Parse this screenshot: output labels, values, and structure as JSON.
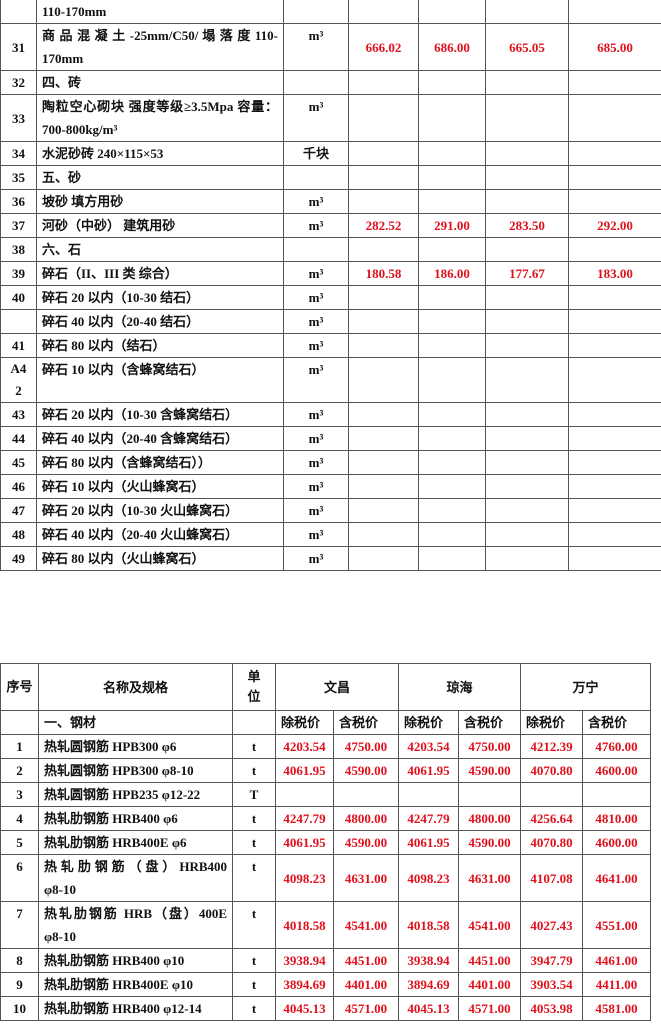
{
  "table1": {
    "rows": [
      {
        "no": "",
        "name": "110-170mm",
        "unit": "",
        "vals": [
          "",
          "",
          "",
          ""
        ]
      },
      {
        "no": "31",
        "name": "商 品 混 凝 土 -25mm/C50/ 塌 落 度 110-170mm",
        "unit": "m³",
        "vals": [
          "666.02",
          "686.00",
          "665.05",
          "685.00"
        ]
      },
      {
        "no": "32",
        "name": "四、砖",
        "unit": "",
        "vals": [
          "",
          "",
          "",
          ""
        ]
      },
      {
        "no": "33",
        "name": "陶粒空心砌块 强度等级≥3.5Mpa 容量：700-800kg/m³",
        "unit": "m³",
        "vals": [
          "",
          "",
          "",
          ""
        ]
      },
      {
        "no": "34",
        "name": "水泥砂砖 240×115×53",
        "unit": "千块",
        "vals": [
          "",
          "",
          "",
          ""
        ]
      },
      {
        "no": "35",
        "name": "五、砂",
        "unit": "",
        "vals": [
          "",
          "",
          "",
          ""
        ]
      },
      {
        "no": "36",
        "name": "坡砂 填方用砂",
        "unit": "m³",
        "vals": [
          "",
          "",
          "",
          ""
        ]
      },
      {
        "no": "37",
        "name": "河砂（中砂） 建筑用砂",
        "unit": "m³",
        "vals": [
          "282.52",
          "291.00",
          "283.50",
          "292.00"
        ]
      },
      {
        "no": "38",
        "name": "六、石",
        "unit": "",
        "vals": [
          "",
          "",
          "",
          ""
        ]
      },
      {
        "no": "39",
        "name": "碎石（II、III 类 综合）",
        "unit": "m³",
        "vals": [
          "180.58",
          "186.00",
          "177.67",
          "183.00"
        ]
      },
      {
        "no": "40",
        "name": "碎石 20 以内（10-30 结石）",
        "unit": "m³",
        "vals": [
          "",
          "",
          "",
          ""
        ]
      },
      {
        "no": "",
        "name": "碎石 40 以内（20-40 结石）",
        "unit": "m³",
        "vals": [
          "",
          "",
          "",
          ""
        ]
      },
      {
        "no": "41",
        "name": "碎石 80 以内（结石）",
        "unit": "m³",
        "vals": [
          "",
          "",
          "",
          ""
        ]
      },
      {
        "no": "A42",
        "name": "碎石 10 以内（含蜂窝结石）",
        "unit": "m³",
        "vals": [
          "",
          "",
          "",
          ""
        ]
      },
      {
        "no": "43",
        "name": "碎石 20 以内（10-30 含蜂窝结石）",
        "unit": "m³",
        "vals": [
          "",
          "",
          "",
          ""
        ]
      },
      {
        "no": "44",
        "name": "碎石 40 以内（20-40 含蜂窝结石）",
        "unit": "m³",
        "vals": [
          "",
          "",
          "",
          ""
        ]
      },
      {
        "no": "45",
        "name": "碎石 80 以内（含蜂窝结石））",
        "unit": "m³",
        "vals": [
          "",
          "",
          "",
          ""
        ]
      },
      {
        "no": "46",
        "name": "碎石 10 以内（火山蜂窝石）",
        "unit": "m³",
        "vals": [
          "",
          "",
          "",
          ""
        ]
      },
      {
        "no": "47",
        "name": "碎石 20 以内（10-30 火山蜂窝石）",
        "unit": "m³",
        "vals": [
          "",
          "",
          "",
          ""
        ]
      },
      {
        "no": "48",
        "name": "碎石 40 以内（20-40 火山蜂窝石）",
        "unit": "m³",
        "vals": [
          "",
          "",
          "",
          ""
        ]
      },
      {
        "no": "49",
        "name": "碎石 80 以内（火山蜂窝石）",
        "unit": "m³",
        "vals": [
          "",
          "",
          "",
          ""
        ]
      }
    ]
  },
  "table2": {
    "header": {
      "no": "序号",
      "name": "名称及规格",
      "unit": "单位",
      "regions": [
        "文昌",
        "琼海",
        "万宁"
      ],
      "sub": [
        "除税价",
        "含税价"
      ]
    },
    "section": "一、钢材",
    "rows": [
      {
        "no": "1",
        "name": "热轧圆钢筋 HPB300 φ6",
        "unit": "t",
        "vals": [
          "4203.54",
          "4750.00",
          "4203.54",
          "4750.00",
          "4212.39",
          "4760.00"
        ]
      },
      {
        "no": "2",
        "name": "热轧圆钢筋 HPB300 φ8-10",
        "unit": "t",
        "vals": [
          "4061.95",
          "4590.00",
          "4061.95",
          "4590.00",
          "4070.80",
          "4600.00"
        ]
      },
      {
        "no": "3",
        "name": "热轧圆钢筋 HPB235 φ12-22",
        "unit": "T",
        "vals": [
          "",
          "",
          "",
          "",
          "",
          ""
        ]
      },
      {
        "no": "4",
        "name": "热轧肋钢筋 HRB400 φ6",
        "unit": "t",
        "vals": [
          "4247.79",
          "4800.00",
          "4247.79",
          "4800.00",
          "4256.64",
          "4810.00"
        ]
      },
      {
        "no": "5",
        "name": "热轧肋钢筋 HRB400E φ6",
        "unit": "t",
        "vals": [
          "4061.95",
          "4590.00",
          "4061.95",
          "4590.00",
          "4070.80",
          "4600.00"
        ]
      },
      {
        "no": "6",
        "name": "热 轧 肋 钢 筋 （ 盘 ） HRB400 φ8-10",
        "unit": "t",
        "vals": [
          "4098.23",
          "4631.00",
          "4098.23",
          "4631.00",
          "4107.08",
          "4641.00"
        ]
      },
      {
        "no": "7",
        "name": "热轧肋钢筋 HRB（盘）400E φ8-10",
        "unit": "t",
        "vals": [
          "4018.58",
          "4541.00",
          "4018.58",
          "4541.00",
          "4027.43",
          "4551.00"
        ]
      },
      {
        "no": "8",
        "name": "热轧肋钢筋 HRB400 φ10",
        "unit": "t",
        "vals": [
          "3938.94",
          "4451.00",
          "3938.94",
          "4451.00",
          "3947.79",
          "4461.00"
        ]
      },
      {
        "no": "9",
        "name": "热轧肋钢筋 HRB400E φ10",
        "unit": "t",
        "vals": [
          "3894.69",
          "4401.00",
          "3894.69",
          "4401.00",
          "3903.54",
          "4411.00"
        ]
      },
      {
        "no": "10",
        "name": "热轧肋钢筋 HRB400 φ12-14",
        "unit": "t",
        "vals": [
          "4045.13",
          "4571.00",
          "4045.13",
          "4571.00",
          "4053.98",
          "4581.00"
        ]
      }
    ]
  },
  "colors": {
    "price": "#e0101c",
    "border": "#555555"
  }
}
